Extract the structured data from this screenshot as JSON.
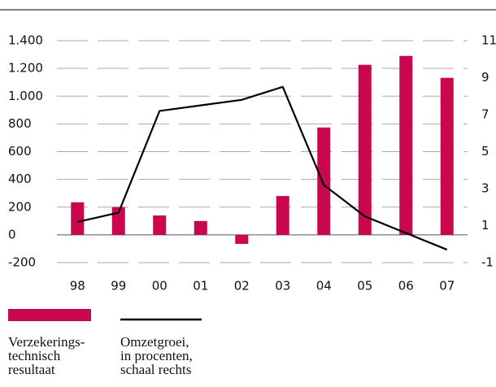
{
  "chart_data": {
    "type": "bar",
    "categories": [
      "98",
      "99",
      "00",
      "01",
      "02",
      "03",
      "04",
      "05",
      "06",
      "07"
    ],
    "series": [
      {
        "name": "Verzekerings-\ntechnisch\nresultaat",
        "type": "bar",
        "color": "#c8074f",
        "values": [
          235,
          200,
          140,
          100,
          -65,
          280,
          774,
          1226,
          1290,
          1132
        ]
      },
      {
        "name": "Omzetgroei,\nin procenten,\nschaal rechts",
        "type": "line",
        "axis": "y2",
        "color": "#000000",
        "values": [
          1.2,
          1.7,
          7.2,
          7.5,
          7.8,
          8.5,
          3.2,
          1.5,
          0.6,
          -0.3
        ]
      }
    ],
    "ylim": [
      -200,
      1400
    ],
    "yticks": [
      -200,
      0,
      200,
      400,
      600,
      800,
      {
        "value": 1000,
        "label": "1.000"
      },
      {
        "value": 1200,
        "label": "1.200"
      },
      {
        "value": 1400,
        "label": "1.400"
      }
    ],
    "y2lim": [
      -1,
      11
    ],
    "y2ticks": [
      -1,
      1,
      3,
      5,
      7,
      9,
      11
    ],
    "grid": true
  }
}
